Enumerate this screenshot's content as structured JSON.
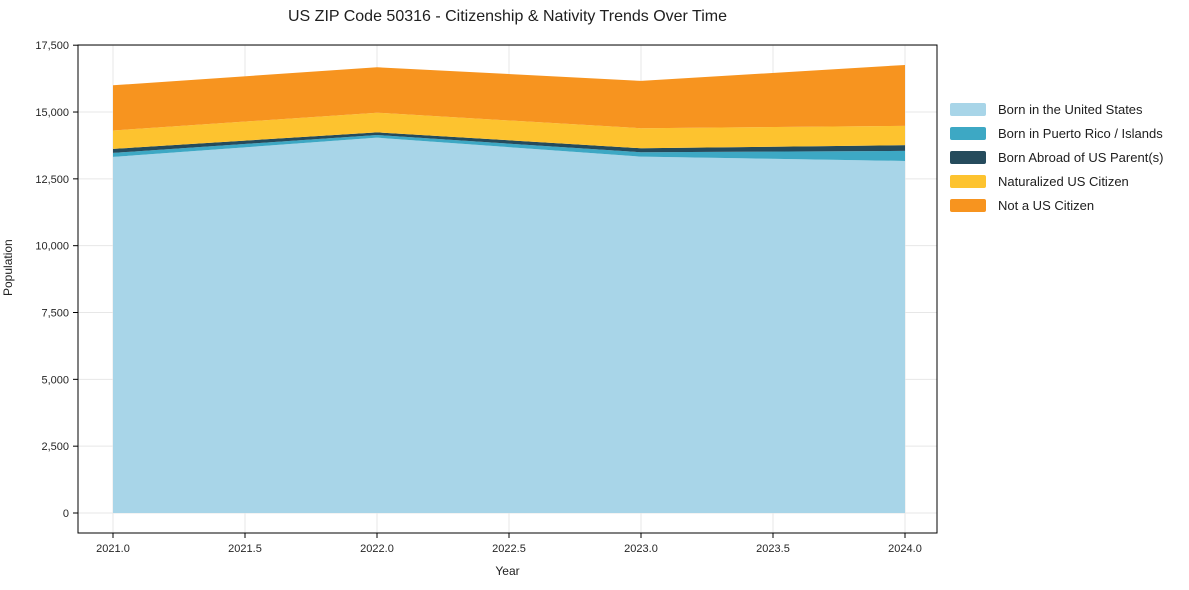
{
  "chart_data": {
    "type": "area",
    "stacked": true,
    "title": "US ZIP Code 50316 - Citizenship & Nativity Trends Over Time",
    "xlabel": "Year",
    "ylabel": "Population",
    "x": [
      2021,
      2022,
      2023,
      2024
    ],
    "x_ticks": [
      2021.0,
      2021.5,
      2022.0,
      2022.5,
      2023.0,
      2023.5,
      2024.0
    ],
    "x_tick_labels": [
      "2021.0",
      "2021.5",
      "2022.0",
      "2022.5",
      "2023.0",
      "2023.5",
      "2024.0"
    ],
    "y_ticks": [
      0,
      2500,
      5000,
      7500,
      10000,
      12500,
      15000,
      17500
    ],
    "y_tick_labels": [
      "0",
      "2,500",
      "5,000",
      "7,500",
      "10,000",
      "12,500",
      "15,000",
      "17,500"
    ],
    "ylim": [
      0,
      17500
    ],
    "grid": true,
    "legend_position": "right-outside",
    "series": [
      {
        "name": "Born in the United States",
        "color": "#a8d5e8",
        "values": [
          13320,
          14040,
          13330,
          13170
        ]
      },
      {
        "name": "Born in Puerto Rico / Islands",
        "color": "#3da8c4",
        "values": [
          150,
          100,
          165,
          375
        ]
      },
      {
        "name": "Born Abroad of US Parent(s)",
        "color": "#254b5c",
        "values": [
          150,
          100,
          150,
          215
        ]
      },
      {
        "name": "Naturalized US Citizen",
        "color": "#fdc32f",
        "values": [
          690,
          735,
          750,
          720
        ]
      },
      {
        "name": "Not a US Citizen",
        "color": "#f7941f",
        "values": [
          1690,
          1700,
          1770,
          2280
        ]
      }
    ],
    "totals": [
      16000,
      16675,
      16165,
      16760
    ],
    "colors": {
      "gridline": "#e7e7e7",
      "spine": "#000000",
      "tick_label": "#262626",
      "title": "#202020"
    }
  }
}
